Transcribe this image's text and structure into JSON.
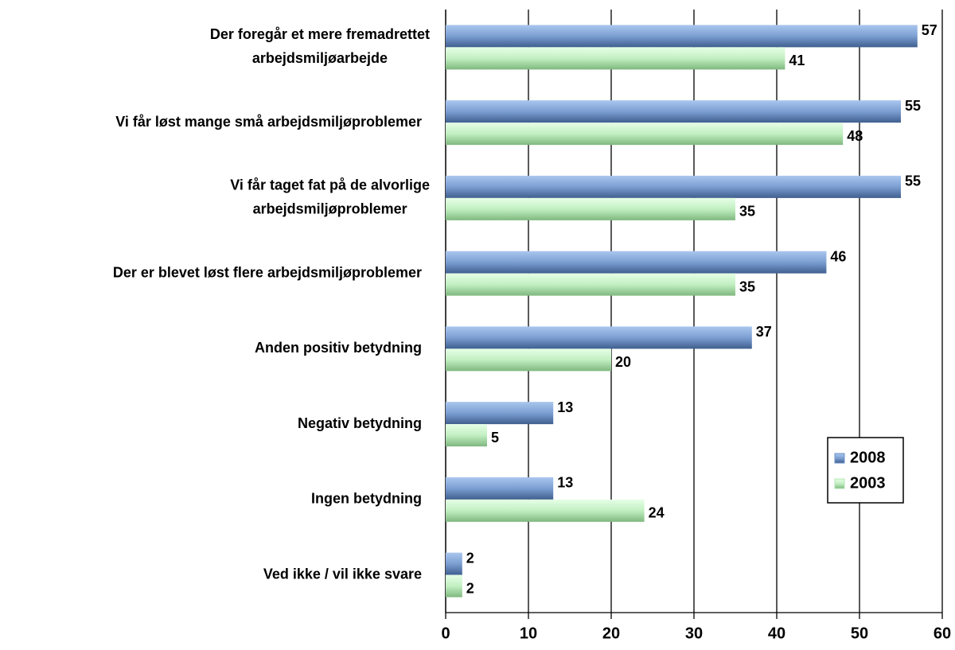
{
  "chart_data": {
    "type": "bar",
    "orientation": "horizontal",
    "categories": [
      [
        "Der foregår et mere fremadrettet",
        "arbejdsmiljøarbejde"
      ],
      [
        "Vi får løst mange små arbejdsmiljøproblemer"
      ],
      [
        "Vi får taget fat på de alvorlige",
        "arbejdsmiljøproblemer"
      ],
      [
        "Der er blevet løst flere arbejdsmiljøproblemer"
      ],
      [
        "Anden positiv betydning"
      ],
      [
        "Negativ betydning"
      ],
      [
        "Ingen betydning"
      ],
      [
        "Ved ikke / vil ikke svare"
      ]
    ],
    "series": [
      {
        "name": "2008",
        "color": "#6f93c8",
        "values": [
          57,
          55,
          55,
          46,
          37,
          13,
          13,
          2
        ]
      },
      {
        "name": "2003",
        "color": "#b3e6b3",
        "values": [
          41,
          48,
          35,
          35,
          20,
          5,
          24,
          2
        ]
      }
    ],
    "xlim": [
      0,
      60
    ],
    "xticks": [
      0,
      10,
      20,
      30,
      40,
      50,
      60
    ],
    "grid": true,
    "legend": "lower right"
  }
}
